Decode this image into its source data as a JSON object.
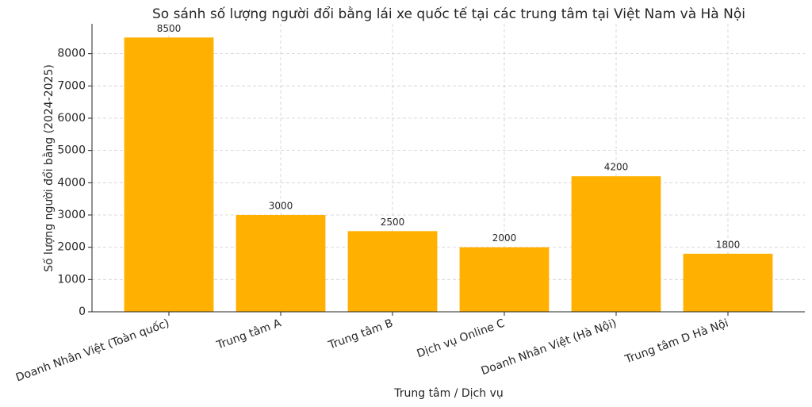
{
  "chart_data": {
    "type": "bar",
    "title": "So sánh số lượng người đổi bằng lái xe quốc tế tại các trung tâm tại Việt Nam và Hà Nội",
    "x_label": "Trung tâm / Dịch vụ",
    "y_label": "Số lượng người đổi bằng (2024-2025)",
    "categories": [
      "Doanh Nhân Việt (Toàn quốc)",
      "Trung tâm A",
      "Trung tâm B",
      "Dịch vụ Online C",
      "Doanh Nhân Việt (Hà Nội)",
      "Trung tâm D Hà Nội"
    ],
    "values": [
      8500,
      3000,
      2500,
      2000,
      4200,
      1800
    ],
    "color": "#ffb000",
    "ylim": [
      0,
      8925
    ],
    "yticks": [
      0,
      1000,
      2000,
      3000,
      4000,
      5000,
      6000,
      7000,
      8000
    ],
    "grid": true
  }
}
